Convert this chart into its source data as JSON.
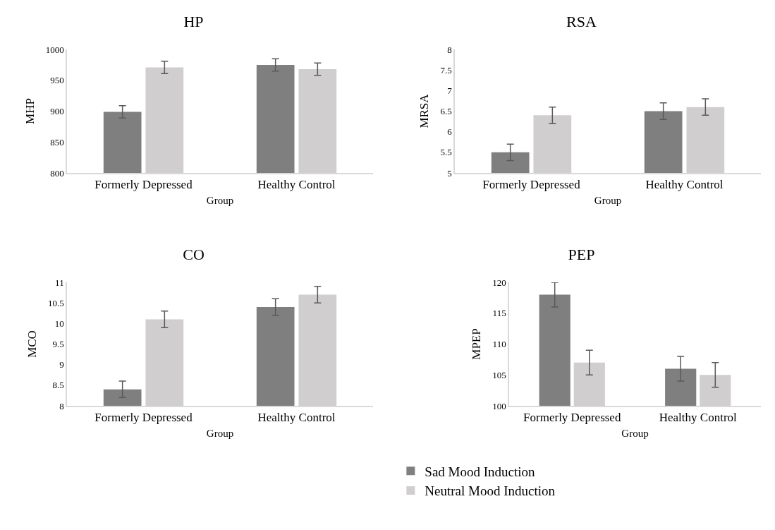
{
  "chart_data": [
    {
      "type": "bar",
      "title": "HP",
      "xlabel": "Group",
      "ylabel": "MHP",
      "categories": [
        "Formerly Depressed",
        "Healthy Control"
      ],
      "ylim": [
        800,
        1000
      ],
      "yticks": [
        800,
        850,
        900,
        950,
        1000
      ],
      "grid": false,
      "legend": false,
      "series": [
        {
          "color": "#7f7f7f",
          "values": [
            899,
            975
          ],
          "errors": [
            10,
            10
          ]
        },
        {
          "color": "#d0cece",
          "values": [
            971,
            968
          ],
          "errors": [
            10,
            10
          ]
        }
      ]
    },
    {
      "type": "bar",
      "title": "RSA",
      "xlabel": "Group",
      "ylabel": "MRSA",
      "categories": [
        "Formerly Depressed",
        "Healthy Control"
      ],
      "ylim": [
        5,
        8
      ],
      "yticks": [
        5,
        5.5,
        6,
        6.5,
        7,
        7.5,
        8
      ],
      "grid": false,
      "legend": false,
      "series": [
        {
          "color": "#7f7f7f",
          "values": [
            5.5,
            6.5
          ],
          "errors": [
            0.2,
            0.2
          ]
        },
        {
          "color": "#d0cece",
          "values": [
            6.4,
            6.6
          ],
          "errors": [
            0.2,
            0.2
          ]
        }
      ]
    },
    {
      "type": "bar",
      "title": "CO",
      "xlabel": "Group",
      "ylabel": "MCO",
      "categories": [
        "Formerly Depressed",
        "Healthy Control"
      ],
      "ylim": [
        8,
        11
      ],
      "yticks": [
        8,
        8.5,
        9,
        9.5,
        10,
        10.5,
        11
      ],
      "grid": false,
      "legend": false,
      "series": [
        {
          "color": "#7f7f7f",
          "values": [
            8.4,
            10.4
          ],
          "errors": [
            0.2,
            0.2
          ]
        },
        {
          "color": "#d0cece",
          "values": [
            10.1,
            10.7
          ],
          "errors": [
            0.2,
            0.2
          ]
        }
      ]
    },
    {
      "type": "bar",
      "title": "PEP",
      "xlabel": "Group",
      "ylabel": "MPEP",
      "categories": [
        "Formerly Depressed",
        "Healthy Control"
      ],
      "ylim": [
        100,
        120
      ],
      "yticks": [
        100,
        105,
        110,
        115,
        120
      ],
      "grid": false,
      "legend": "bottom",
      "series": [
        {
          "name": "Sad Mood Induction",
          "color": "#7f7f7f",
          "values": [
            118,
            106
          ],
          "errors": [
            2,
            2
          ]
        },
        {
          "name": "Neutral Mood Induction",
          "color": "#d0cece",
          "values": [
            107,
            105
          ],
          "errors": [
            2,
            2
          ]
        }
      ]
    }
  ]
}
